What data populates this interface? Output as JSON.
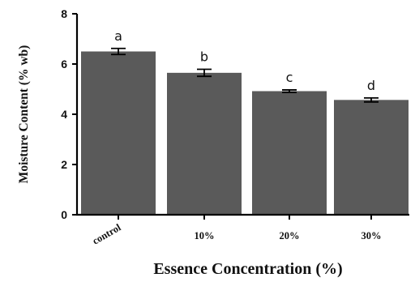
{
  "chart_data": {
    "type": "bar",
    "title": "",
    "xlabel": "Essence Concentration (%)",
    "ylabel": "Moisture Content (% wb)",
    "categories": [
      "control",
      "10%",
      "20%",
      "30%"
    ],
    "values": [
      6.5,
      5.65,
      4.92,
      4.57
    ],
    "error": [
      0.12,
      0.14,
      0.05,
      0.08
    ],
    "significance": [
      "a",
      "b",
      "c",
      "d"
    ],
    "ylim": [
      0,
      8
    ],
    "yticks": [
      "0",
      "2",
      "4",
      "6",
      "8"
    ],
    "grid": false,
    "bar_color": "#5a5a5a"
  }
}
